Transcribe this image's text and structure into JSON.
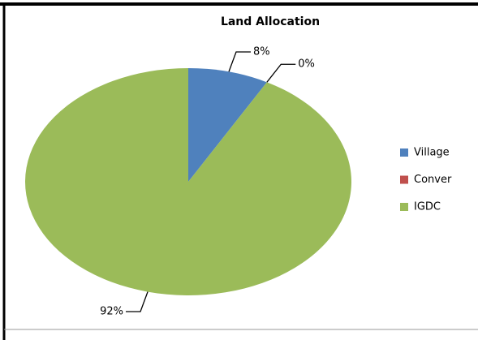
{
  "chart_data": {
    "type": "pie",
    "title": "Land Allocation",
    "categories": [
      "Village",
      "Conver",
      "IGDC"
    ],
    "values": [
      8,
      0,
      92
    ],
    "value_labels": [
      "8%",
      "0%",
      "92%"
    ],
    "colors": [
      "#4f81bd",
      "#c0504d",
      "#9bbb59"
    ],
    "legend": "right"
  }
}
